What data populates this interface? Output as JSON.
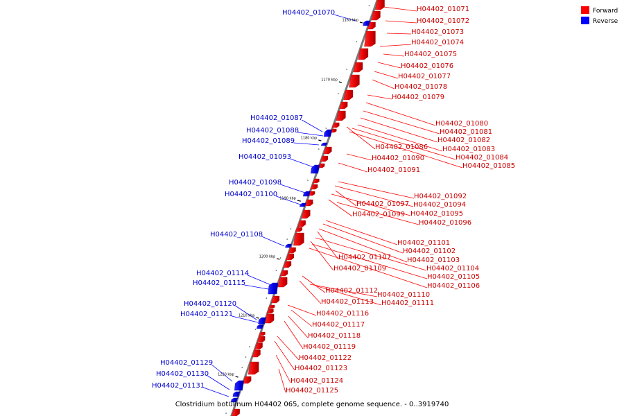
{
  "caption": "Clostridium botulinum H04402 065, complete genome sequence. - 0..3919740",
  "colors": {
    "forward": "#ff0000",
    "reverse": "#0000ff",
    "axis": "#808080",
    "text_forward": "#cc0000",
    "text_reverse": "#0000cc"
  },
  "legend": [
    {
      "label": "Forward",
      "strand": "forward"
    },
    {
      "label": "Reverse",
      "strand": "reverse"
    }
  ],
  "ticks": [
    "1160 kbp",
    "1170 kbp",
    "1180 kbp",
    "1190 kbp",
    "1200 kbp",
    "1210 kbp",
    "1220 kbp"
  ],
  "forward_labels": [
    "H04402_01071",
    "H04402_01072",
    "H04402_01073",
    "H04402_01074",
    "H04402_01075",
    "H04402_01076",
    "H04402_01077",
    "H04402_01078",
    "H04402_01079",
    "H04402_01080",
    "H04402_01081",
    "H04402_01082",
    "H04402_01083",
    "H04402_01084",
    "H04402_01085",
    "H04402_01086",
    "H04402_01090",
    "H04402_01091",
    "H04402_01092",
    "H04402_01094",
    "H04402_01097",
    "H04402_01095",
    "H04402_01099",
    "H04402_01096",
    "H04402_01101",
    "H04402_01102",
    "H04402_01103",
    "H04402_01107",
    "H04402_01104",
    "H04402_01109",
    "H04402_01105",
    "H04402_01106",
    "H04402_01112",
    "H04402_01110",
    "H04402_01113",
    "H04402_01111",
    "H04402_01116",
    "H04402_01117",
    "H04402_01118",
    "H04402_01119",
    "H04402_01122",
    "H04402_01123",
    "H04402_01124",
    "H04402_01125"
  ],
  "reverse_labels": [
    "H04402_01070",
    "H04402_01087",
    "H04402_01088",
    "H04402_01089",
    "H04402_01093",
    "H04402_01098",
    "H04402_01100",
    "H04402_01108",
    "H04402_01114",
    "H04402_01115",
    "H04402_01120",
    "H04402_01121",
    "H04402_01129",
    "H04402_01130",
    "H04402_01131"
  ]
}
